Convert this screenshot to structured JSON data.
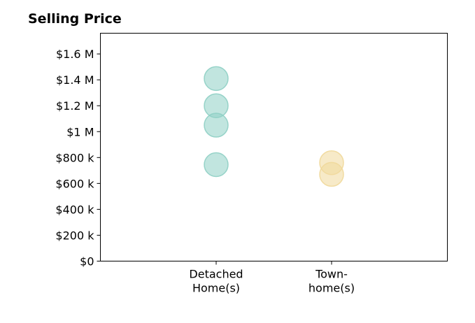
{
  "chart_data": {
    "type": "scatter",
    "title": "Selling Price",
    "categories": [
      "Detached\nHome(s)",
      "Town-\nhome(s)"
    ],
    "series": [
      {
        "category": "Detached\nHome(s)",
        "color": "#8ecfc4",
        "values": [
          1410000,
          1200000,
          1050000,
          745000
        ]
      },
      {
        "category": "Town-\nhome(s)",
        "color": "#f0d89a",
        "values": [
          760000,
          670000
        ]
      }
    ],
    "yticks": [
      0,
      200000,
      400000,
      600000,
      800000,
      1000000,
      1200000,
      1400000,
      1600000
    ],
    "ytick_labels": [
      "$0",
      "$200 k",
      "$400 k",
      "$600 k",
      "$800 k",
      "$1 M",
      "$1.2 M",
      "$1.4 M",
      "$1.6 M"
    ],
    "ylim": [
      0,
      1760000
    ],
    "xlabel": "",
    "ylabel": "",
    "grid": false
  }
}
